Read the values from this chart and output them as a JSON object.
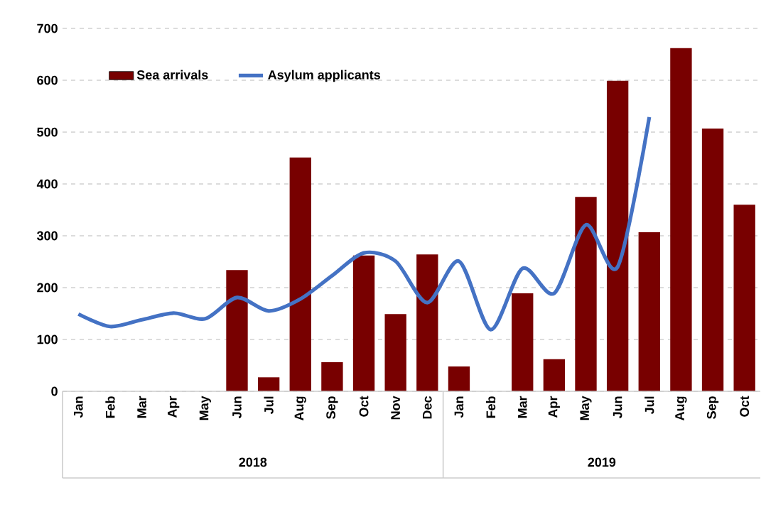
{
  "chart_data": {
    "type": "bar",
    "categories": [
      "Jan",
      "Feb",
      "Mar",
      "Apr",
      "May",
      "Jun",
      "Jul",
      "Aug",
      "Sep",
      "Oct",
      "Nov",
      "Dec",
      "Jan",
      "Feb",
      "Mar",
      "Apr",
      "May",
      "Jun",
      "Jul",
      "Aug",
      "Sep",
      "Oct"
    ],
    "series": [
      {
        "name": "Sea arrivals",
        "color": "#780000",
        "values": [
          null,
          null,
          null,
          null,
          null,
          234,
          27,
          451,
          56,
          262,
          149,
          264,
          48,
          null,
          189,
          62,
          375,
          599,
          307,
          662,
          507,
          360
        ]
      },
      {
        "name": "Asylum applicants",
        "type": "line",
        "color": "#4472c4",
        "values": [
          149,
          125,
          138,
          151,
          140,
          181,
          155,
          178,
          223,
          267,
          251,
          171,
          251,
          119,
          237,
          189,
          321,
          240,
          529,
          null,
          null,
          null
        ]
      }
    ],
    "ylim": [
      0,
      700
    ],
    "yticks": [
      0,
      100,
      200,
      300,
      400,
      500,
      600,
      700
    ],
    "grid": "y",
    "legend": "top left",
    "annotations": [
      "2018",
      "2019"
    ]
  }
}
